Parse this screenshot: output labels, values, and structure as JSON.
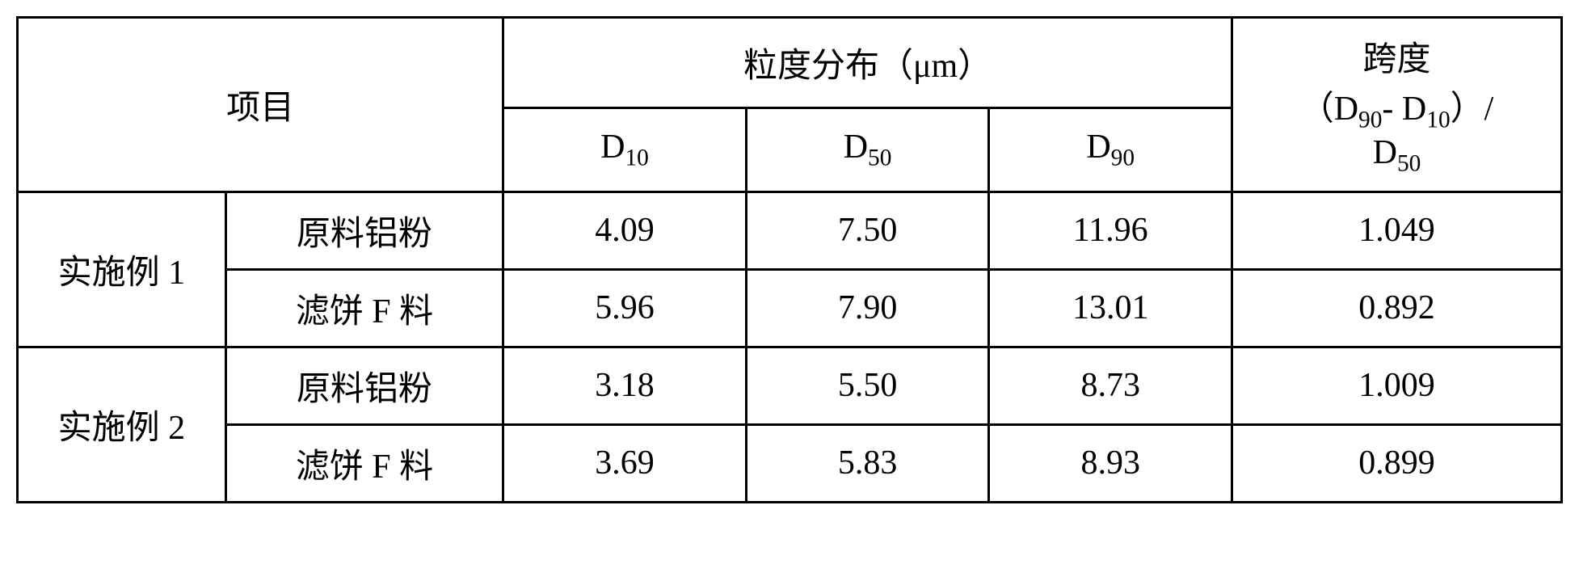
{
  "headers": {
    "project": "项目",
    "particle_dist": "粒度分布（μm）",
    "span_header_line1": "跨度",
    "span_header_line2_part1": "（D",
    "span_header_line2_sub1": "90",
    "span_header_line2_part2": "- D",
    "span_header_line2_sub2": "10",
    "span_header_line2_part3": "）/",
    "span_header_line3_part1": "D",
    "span_header_line3_sub": "50",
    "d10_label": "D",
    "d10_sub": "10",
    "d50_label": "D",
    "d50_sub": "50",
    "d90_label": "D",
    "d90_sub": "90"
  },
  "groups": [
    {
      "name": "实施例 1",
      "rows": [
        {
          "item": "原料铝粉",
          "d10": "4.09",
          "d50": "7.50",
          "d90": "11.96",
          "span": "1.049"
        },
        {
          "item": "滤饼 F 料",
          "d10": "5.96",
          "d50": "7.90",
          "d90": "13.01",
          "span": "0.892"
        }
      ]
    },
    {
      "name": "实施例 2",
      "rows": [
        {
          "item": "原料铝粉",
          "d10": "3.18",
          "d50": "5.50",
          "d90": "8.73",
          "span": "1.009"
        },
        {
          "item": "滤饼 F 料",
          "d10": "3.69",
          "d50": "5.83",
          "d90": "8.93",
          "span": "0.899"
        }
      ]
    }
  ],
  "styling": {
    "border_color": "#000000",
    "border_width": 3,
    "background_color": "#ffffff",
    "text_color": "#000000",
    "font_family": "SimSun",
    "base_font_size": 42,
    "col_widths": {
      "project_a": 240,
      "project_b": 320,
      "d_col": 280,
      "span_col": 380
    },
    "table_type": "table"
  }
}
